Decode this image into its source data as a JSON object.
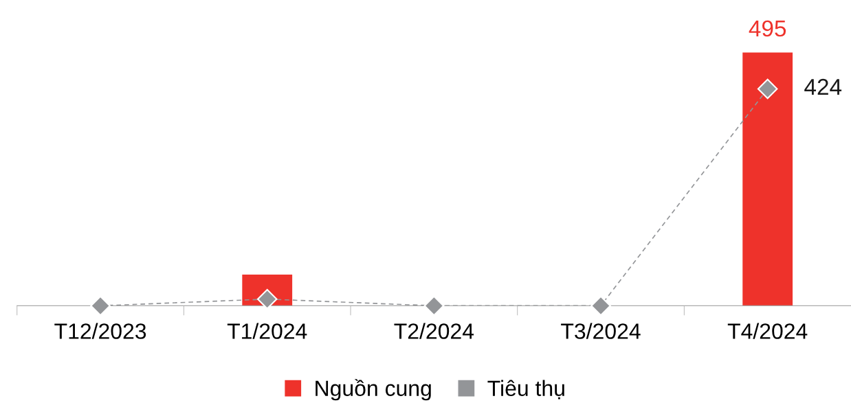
{
  "chart_data": {
    "type": "bar",
    "categories": [
      "T12/2023",
      "T1/2024",
      "T2/2024",
      "T3/2024",
      "T4/2024"
    ],
    "series": [
      {
        "name": "Nguồn cung",
        "color": "#ee322b",
        "values": [
          0,
          61,
          0,
          0,
          495
        ],
        "value_labels": [
          null,
          null,
          null,
          null,
          "495"
        ]
      },
      {
        "name": "Tiêu thụ",
        "type": "line",
        "color": "#939598",
        "values": [
          0,
          13,
          0,
          0,
          424
        ],
        "value_labels": [
          null,
          null,
          null,
          null,
          "424"
        ],
        "marker": "diamond",
        "line_style": "dashed"
      }
    ],
    "legend": "bottom"
  }
}
